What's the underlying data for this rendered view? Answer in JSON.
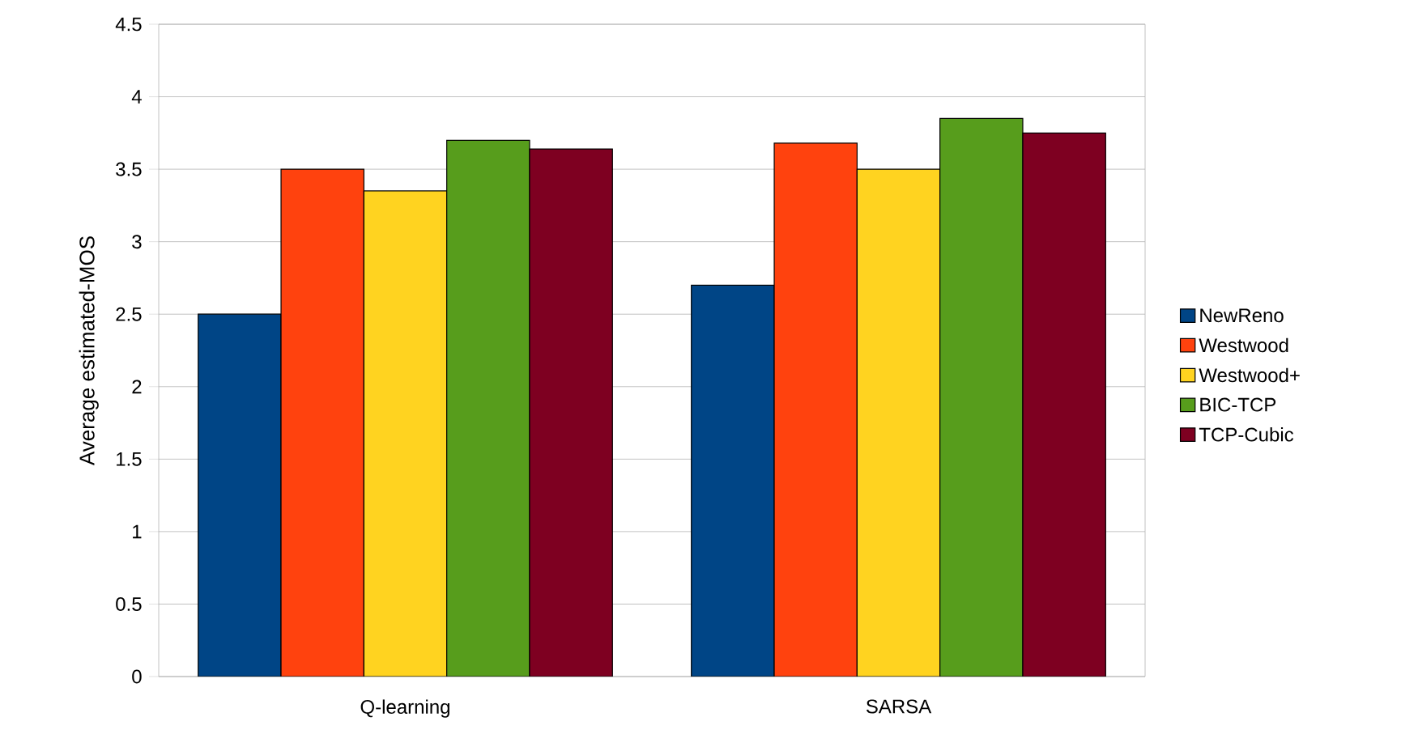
{
  "chart_data": {
    "type": "bar",
    "ylabel": "Average estimated-MOS",
    "categories": [
      "Q-learning",
      "SARSA"
    ],
    "series": [
      {
        "name": "NewReno",
        "color": "#004586",
        "values": [
          2.5,
          2.7
        ]
      },
      {
        "name": "Westwood",
        "color": "#ff420e",
        "values": [
          3.5,
          3.68
        ]
      },
      {
        "name": "Westwood+",
        "color": "#ffd320",
        "values": [
          3.35,
          3.5
        ]
      },
      {
        "name": "BIC-TCP",
        "color": "#579d1c",
        "values": [
          3.7,
          3.85
        ]
      },
      {
        "name": "TCP-Cubic",
        "color": "#7e0021",
        "values": [
          3.64,
          3.75
        ]
      }
    ],
    "ylim": [
      0,
      4.5
    ],
    "yticks": [
      0,
      0.5,
      1,
      1.5,
      2,
      2.5,
      3,
      3.5,
      4,
      4.5
    ],
    "grid": "y",
    "legend": "right"
  }
}
